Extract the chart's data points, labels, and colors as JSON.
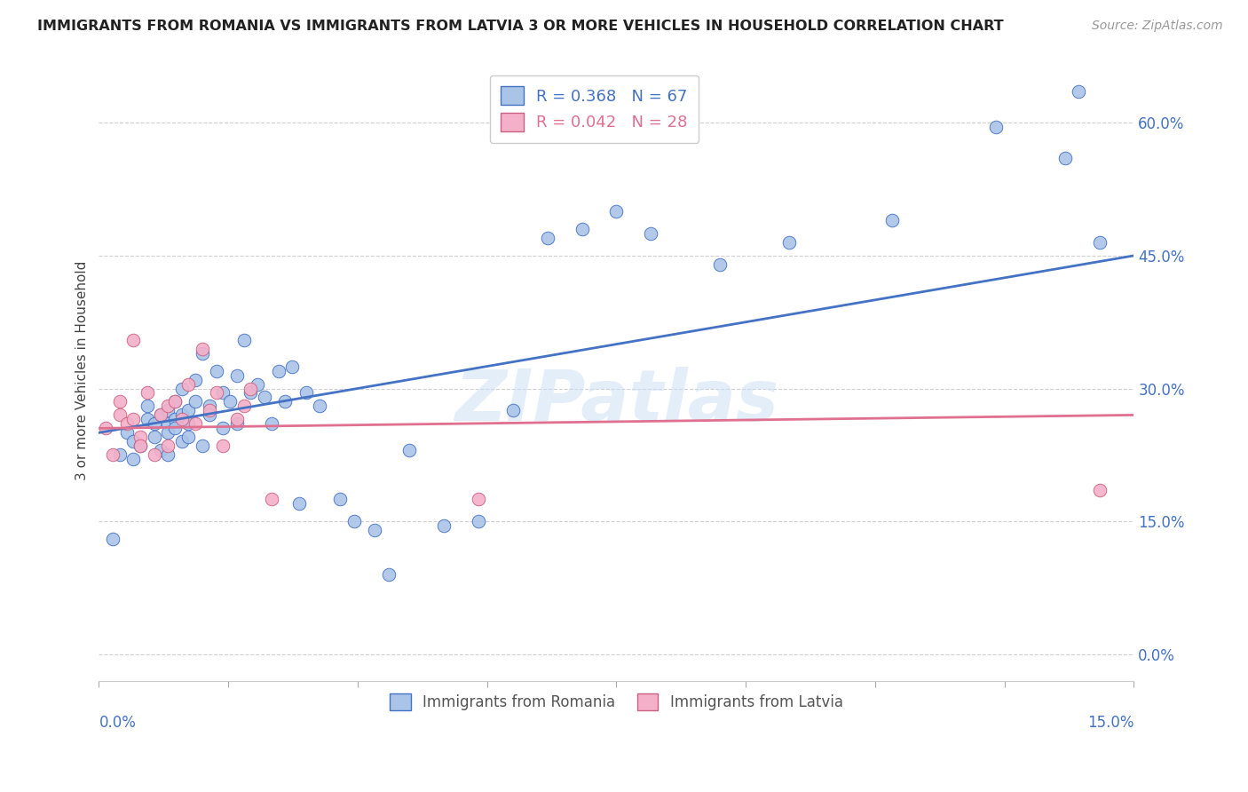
{
  "title": "IMMIGRANTS FROM ROMANIA VS IMMIGRANTS FROM LATVIA 3 OR MORE VEHICLES IN HOUSEHOLD CORRELATION CHART",
  "source": "Source: ZipAtlas.com",
  "ylabel": "3 or more Vehicles in Household",
  "ytick_vals": [
    0.0,
    15.0,
    30.0,
    45.0,
    60.0
  ],
  "xlim": [
    0.0,
    15.0
  ],
  "ylim": [
    -3.0,
    67.0
  ],
  "romania_color": "#aac4e8",
  "latvia_color": "#f4b0c8",
  "romania_line_color": "#4472c4",
  "latvia_line_color": "#e07090",
  "watermark": "ZIPatlas",
  "romania_R": 0.368,
  "romania_N": 67,
  "latvia_R": 0.042,
  "latvia_N": 28,
  "romania_scatter_x": [
    0.2,
    0.3,
    0.4,
    0.5,
    0.5,
    0.6,
    0.7,
    0.7,
    0.8,
    0.8,
    0.9,
    0.9,
    1.0,
    1.0,
    1.0,
    1.0,
    1.1,
    1.1,
    1.1,
    1.2,
    1.2,
    1.2,
    1.3,
    1.3,
    1.3,
    1.4,
    1.4,
    1.5,
    1.5,
    1.6,
    1.6,
    1.7,
    1.8,
    1.8,
    1.9,
    2.0,
    2.0,
    2.1,
    2.2,
    2.3,
    2.4,
    2.5,
    2.6,
    2.7,
    2.8,
    3.0,
    3.2,
    3.5,
    3.7,
    4.0,
    4.2,
    4.5,
    5.0,
    5.5,
    6.0,
    6.5,
    7.0,
    7.5,
    8.0,
    9.0,
    10.0,
    11.5,
    13.0,
    14.0,
    14.2,
    14.5,
    2.9
  ],
  "romania_scatter_y": [
    13.0,
    22.5,
    25.0,
    24.0,
    22.0,
    23.5,
    28.0,
    26.5,
    26.0,
    24.5,
    27.0,
    23.0,
    27.5,
    26.0,
    25.0,
    22.5,
    28.5,
    26.5,
    25.5,
    30.0,
    27.0,
    24.0,
    27.5,
    26.0,
    24.5,
    31.0,
    28.5,
    34.0,
    23.5,
    28.0,
    27.0,
    32.0,
    25.5,
    29.5,
    28.5,
    31.5,
    26.0,
    35.5,
    29.5,
    30.5,
    29.0,
    26.0,
    32.0,
    28.5,
    32.5,
    29.5,
    28.0,
    17.5,
    15.0,
    14.0,
    9.0,
    23.0,
    14.5,
    15.0,
    27.5,
    47.0,
    48.0,
    50.0,
    47.5,
    44.0,
    46.5,
    49.0,
    59.5,
    56.0,
    63.5,
    46.5,
    17.0
  ],
  "latvia_scatter_x": [
    0.1,
    0.2,
    0.3,
    0.3,
    0.4,
    0.5,
    0.5,
    0.6,
    0.6,
    0.7,
    0.8,
    0.9,
    1.0,
    1.0,
    1.1,
    1.2,
    1.3,
    1.4,
    1.5,
    1.6,
    1.7,
    1.8,
    2.0,
    2.1,
    2.2,
    2.5,
    5.5,
    14.5
  ],
  "latvia_scatter_y": [
    25.5,
    22.5,
    28.5,
    27.0,
    26.0,
    26.5,
    35.5,
    24.5,
    23.5,
    29.5,
    22.5,
    27.0,
    28.0,
    23.5,
    28.5,
    26.5,
    30.5,
    26.0,
    34.5,
    27.5,
    29.5,
    23.5,
    26.5,
    28.0,
    30.0,
    17.5,
    17.5,
    18.5
  ]
}
